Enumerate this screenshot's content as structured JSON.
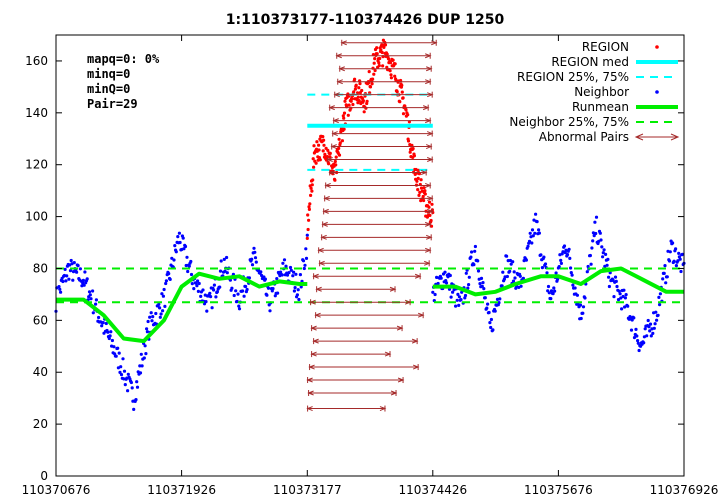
{
  "chart_data": {
    "type": "scatter",
    "title": "1:110373177-110374426 DUP 1250",
    "xlabel": "",
    "ylabel": "",
    "xlim": [
      110370676,
      110376926
    ],
    "ylim": [
      0,
      170
    ],
    "x_ticks": [
      110370676,
      110371926,
      110373177,
      110374426,
      110375676,
      110376926
    ],
    "y_ticks": [
      0,
      20,
      40,
      60,
      80,
      100,
      120,
      140,
      160
    ],
    "grid": false,
    "legend_position": "top-right",
    "stats": [
      "mapq=0: 0%",
      "minq=0",
      "minQ=0",
      "Pair=29"
    ],
    "region": {
      "start": 110373177,
      "end": 110374426,
      "median": 135,
      "q25": 118,
      "q75": 147,
      "color": "#ff0000"
    },
    "neighbor": {
      "q25": 67,
      "q75": 80,
      "color": "#0000ff"
    },
    "runmean": {
      "color": "#00ee00",
      "x": [
        110370676,
        110370950,
        110371150,
        110371350,
        110371550,
        110371750,
        110371926,
        110372100,
        110372300,
        110372500,
        110372700,
        110372900,
        110373100,
        110373177
      ],
      "y": [
        68,
        68,
        62,
        53,
        52,
        60,
        73,
        78,
        76,
        77,
        73,
        75,
        74,
        74
      ]
    },
    "runmean2": {
      "x": [
        110374426,
        110374650,
        110374850,
        110375050,
        110375250,
        110375500,
        110375676,
        110375900,
        110376100,
        110376300,
        110376500,
        110376750,
        110376926
      ],
      "y": [
        73,
        73,
        70,
        71,
        74,
        77,
        77,
        74,
        79,
        80,
        76,
        71,
        71
      ]
    },
    "neighbor_profile": {
      "x": [
        110370676,
        110370800,
        110370950,
        110371100,
        110371300,
        110371450,
        110371600,
        110371750,
        110371900,
        110372050,
        110372200,
        110372350,
        110372500,
        110372650,
        110372800,
        110372950,
        110373100,
        110373177,
        110374426,
        110374550,
        110374700,
        110374850,
        110375000,
        110375150,
        110375300,
        110375450,
        110375600,
        110375750,
        110375900,
        110376050,
        110376200,
        110376350,
        110376500,
        110376650,
        110376800,
        110376926
      ],
      "y": [
        68,
        80,
        76,
        62,
        45,
        30,
        57,
        68,
        92,
        75,
        66,
        82,
        68,
        84,
        67,
        80,
        72,
        90,
        70,
        78,
        65,
        88,
        56,
        82,
        74,
        98,
        68,
        90,
        62,
        96,
        75,
        66,
        50,
        62,
        88,
        80
      ]
    },
    "region_profile": {
      "x": [
        110373177,
        110373250,
        110373350,
        110373450,
        110373550,
        110373650,
        110373750,
        110373850,
        110373950,
        110374050,
        110374150,
        110374250,
        110374350,
        110374426
      ],
      "y": [
        95,
        125,
        128,
        115,
        140,
        150,
        145,
        160,
        164,
        155,
        142,
        118,
        105,
        100
      ]
    },
    "abnormal_pairs": {
      "color": "#a52a2a",
      "pairs": [
        {
          "start": 110373180,
          "end": 110373950,
          "y": 26
        },
        {
          "start": 110373190,
          "end": 110374060,
          "y": 32
        },
        {
          "start": 110373180,
          "end": 110374130,
          "y": 37
        },
        {
          "start": 110373200,
          "end": 110374280,
          "y": 42
        },
        {
          "start": 110373220,
          "end": 110374000,
          "y": 47
        },
        {
          "start": 110373240,
          "end": 110374270,
          "y": 52
        },
        {
          "start": 110373220,
          "end": 110374120,
          "y": 57
        },
        {
          "start": 110373260,
          "end": 110374330,
          "y": 62
        },
        {
          "start": 110373210,
          "end": 110374200,
          "y": 67
        },
        {
          "start": 110373270,
          "end": 110374050,
          "y": 72
        },
        {
          "start": 110373240,
          "end": 110374300,
          "y": 77
        },
        {
          "start": 110373300,
          "end": 110374390,
          "y": 82
        },
        {
          "start": 110373290,
          "end": 110374400,
          "y": 87
        },
        {
          "start": 110373320,
          "end": 110374410,
          "y": 92
        },
        {
          "start": 110373330,
          "end": 110374400,
          "y": 97
        },
        {
          "start": 110373340,
          "end": 110374420,
          "y": 102
        },
        {
          "start": 110373350,
          "end": 110374420,
          "y": 107
        },
        {
          "start": 110373360,
          "end": 110374400,
          "y": 112
        },
        {
          "start": 110373400,
          "end": 110374360,
          "y": 117
        },
        {
          "start": 110373380,
          "end": 110374420,
          "y": 122
        },
        {
          "start": 110373420,
          "end": 110374410,
          "y": 127
        },
        {
          "start": 110373430,
          "end": 110374420,
          "y": 132
        },
        {
          "start": 110373440,
          "end": 110374400,
          "y": 137
        },
        {
          "start": 110373400,
          "end": 110374380,
          "y": 142
        },
        {
          "start": 110373450,
          "end": 110374420,
          "y": 147
        },
        {
          "start": 110373480,
          "end": 110374400,
          "y": 152
        },
        {
          "start": 110373500,
          "end": 110374410,
          "y": 157
        },
        {
          "start": 110373470,
          "end": 110374400,
          "y": 162
        },
        {
          "start": 110373520,
          "end": 110374460,
          "y": 167
        }
      ]
    },
    "legend": [
      {
        "label": "REGION",
        "kind": "dot",
        "color": "#ff0000"
      },
      {
        "label": "REGION med",
        "kind": "thick-line",
        "color": "#00ffff"
      },
      {
        "label": "REGION 25%, 75%",
        "kind": "dashed",
        "color": "#00ffff"
      },
      {
        "label": "Neighbor",
        "kind": "dot",
        "color": "#0000ff"
      },
      {
        "label": "Runmean",
        "kind": "thick-line",
        "color": "#00ee00"
      },
      {
        "label": "Neighbor 25%, 75%",
        "kind": "dashed",
        "color": "#00ee00"
      },
      {
        "label": "Abnormal Pairs",
        "kind": "arrow",
        "color": "#a52a2a"
      }
    ]
  }
}
